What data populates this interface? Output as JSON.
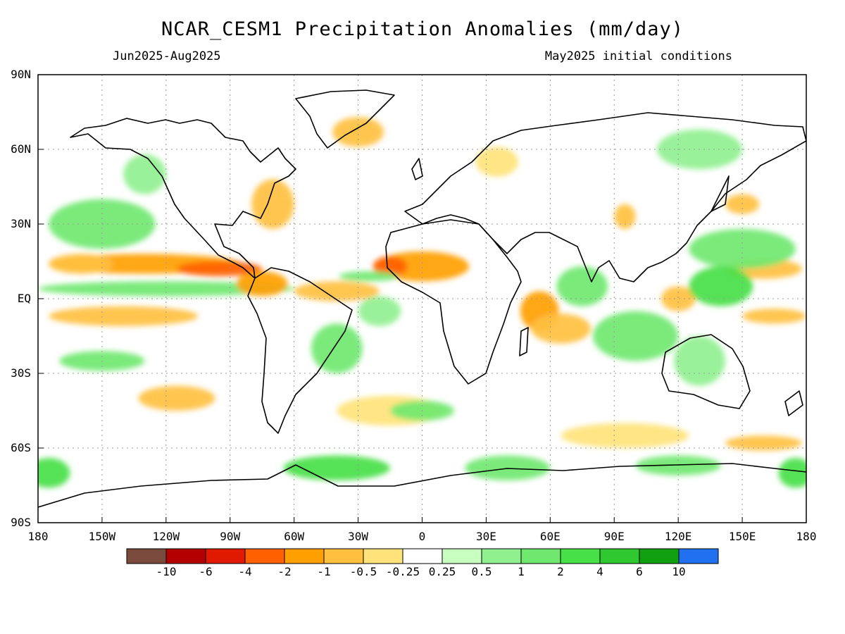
{
  "title": "NCAR_CESM1 Precipitation Anomalies (mm/day)",
  "period": "Jun2025-Aug2025",
  "init": "May2025 initial conditions",
  "lat_labels": [
    "90N",
    "60N",
    "30N",
    "EQ",
    "30S",
    "60S",
    "90S"
  ],
  "lat_values": [
    90,
    60,
    30,
    0,
    -30,
    -60,
    -90
  ],
  "lon_labels": [
    "180",
    "150W",
    "120W",
    "90W",
    "60W",
    "30W",
    "0",
    "30E",
    "60E",
    "90E",
    "120E",
    "150E",
    "180"
  ],
  "lon_values": [
    -180,
    -150,
    -120,
    -90,
    -60,
    -30,
    0,
    30,
    60,
    90,
    120,
    150,
    180
  ],
  "colorbar": {
    "colors": [
      "#7a4a3c",
      "#b40000",
      "#e01a00",
      "#ff6000",
      "#ffa000",
      "#ffc040",
      "#ffe37a",
      "#ffffff",
      "#c8ffc0",
      "#90f090",
      "#70e870",
      "#48e048",
      "#30c830",
      "#10a010",
      "#2070f0"
    ],
    "labels": [
      "-10",
      "-6",
      "-4",
      "-2",
      "-1",
      "-0.5",
      "-0.25",
      "0.25",
      "0.5",
      "1",
      "2",
      "4",
      "6",
      "10"
    ]
  },
  "chart_data": {
    "type": "heatmap",
    "projection": "cylindrical-equidistant",
    "xlim": [
      -180,
      180
    ],
    "ylim": [
      -90,
      90
    ],
    "grid": true,
    "anomalies": [
      {
        "lon": -130,
        "lat": 14,
        "value": -2,
        "sx": 45,
        "sy": 4
      },
      {
        "lon": -95,
        "lat": 12,
        "value": -4,
        "sx": 20,
        "sy": 3
      },
      {
        "lon": -160,
        "lat": 14,
        "value": -1,
        "sx": 15,
        "sy": 4
      },
      {
        "lon": -120,
        "lat": 4,
        "value": 1,
        "sx": 60,
        "sy": 3
      },
      {
        "lon": -140,
        "lat": -7,
        "value": -1,
        "sx": 35,
        "sy": 4
      },
      {
        "lon": -75,
        "lat": 6,
        "value": -2,
        "sx": 12,
        "sy": 5
      },
      {
        "lon": -40,
        "lat": 3,
        "value": -1,
        "sx": 20,
        "sy": 4
      },
      {
        "lon": 0,
        "lat": 13,
        "value": -2,
        "sx": 22,
        "sy": 6
      },
      {
        "lon": -15,
        "lat": 13,
        "value": -4,
        "sx": 8,
        "sy": 4
      },
      {
        "lon": 55,
        "lat": -5,
        "value": -2,
        "sx": 9,
        "sy": 8
      },
      {
        "lon": 65,
        "lat": -12,
        "value": -1,
        "sx": 14,
        "sy": 6
      },
      {
        "lon": -70,
        "lat": 38,
        "value": -1,
        "sx": 10,
        "sy": 10
      },
      {
        "lon": -30,
        "lat": 67,
        "value": -1,
        "sx": 12,
        "sy": 6
      },
      {
        "lon": 35,
        "lat": 55,
        "value": -0.5,
        "sx": 10,
        "sy": 6
      },
      {
        "lon": 95,
        "lat": 33,
        "value": -1,
        "sx": 5,
        "sy": 5
      },
      {
        "lon": 120,
        "lat": 0,
        "value": -1,
        "sx": 8,
        "sy": 5
      },
      {
        "lon": 160,
        "lat": 12,
        "value": -1,
        "sx": 18,
        "sy": 4
      },
      {
        "lon": 165,
        "lat": -7,
        "value": -1,
        "sx": 15,
        "sy": 3
      },
      {
        "lon": -115,
        "lat": -40,
        "value": -1,
        "sx": 18,
        "sy": 5
      },
      {
        "lon": -15,
        "lat": -45,
        "value": -0.5,
        "sx": 25,
        "sy": 6
      },
      {
        "lon": 95,
        "lat": -55,
        "value": -0.5,
        "sx": 30,
        "sy": 5
      },
      {
        "lon": 160,
        "lat": -58,
        "value": -1,
        "sx": 18,
        "sy": 3
      },
      {
        "lon": 150,
        "lat": 38,
        "value": -1,
        "sx": 8,
        "sy": 4
      },
      {
        "lon": -150,
        "lat": 30,
        "value": 1,
        "sx": 25,
        "sy": 10
      },
      {
        "lon": -25,
        "lat": 9,
        "value": 1,
        "sx": 14,
        "sy": 2
      },
      {
        "lon": -20,
        "lat": -5,
        "value": 0.5,
        "sx": 10,
        "sy": 6
      },
      {
        "lon": -40,
        "lat": -20,
        "value": 1,
        "sx": 12,
        "sy": 10
      },
      {
        "lon": 150,
        "lat": 20,
        "value": 1,
        "sx": 25,
        "sy": 8
      },
      {
        "lon": 140,
        "lat": 5,
        "value": 2,
        "sx": 15,
        "sy": 8
      },
      {
        "lon": 100,
        "lat": -15,
        "value": 1,
        "sx": 20,
        "sy": 10
      },
      {
        "lon": 130,
        "lat": -25,
        "value": 0.5,
        "sx": 12,
        "sy": 10
      },
      {
        "lon": 75,
        "lat": 5,
        "value": 1,
        "sx": 12,
        "sy": 8
      },
      {
        "lon": -40,
        "lat": -68,
        "value": 2,
        "sx": 25,
        "sy": 5
      },
      {
        "lon": 40,
        "lat": -68,
        "value": 1,
        "sx": 20,
        "sy": 5
      },
      {
        "lon": -175,
        "lat": -70,
        "value": 2,
        "sx": 10,
        "sy": 6
      },
      {
        "lon": 175,
        "lat": -70,
        "value": 2,
        "sx": 8,
        "sy": 6
      },
      {
        "lon": 120,
        "lat": -67,
        "value": 1,
        "sx": 20,
        "sy": 4
      },
      {
        "lon": -130,
        "lat": 50,
        "value": 0.5,
        "sx": 10,
        "sy": 8
      },
      {
        "lon": 130,
        "lat": 60,
        "value": 0.5,
        "sx": 20,
        "sy": 8
      },
      {
        "lon": -150,
        "lat": -25,
        "value": 1,
        "sx": 20,
        "sy": 4
      },
      {
        "lon": 0,
        "lat": -45,
        "value": 1,
        "sx": 15,
        "sy": 4
      }
    ]
  }
}
